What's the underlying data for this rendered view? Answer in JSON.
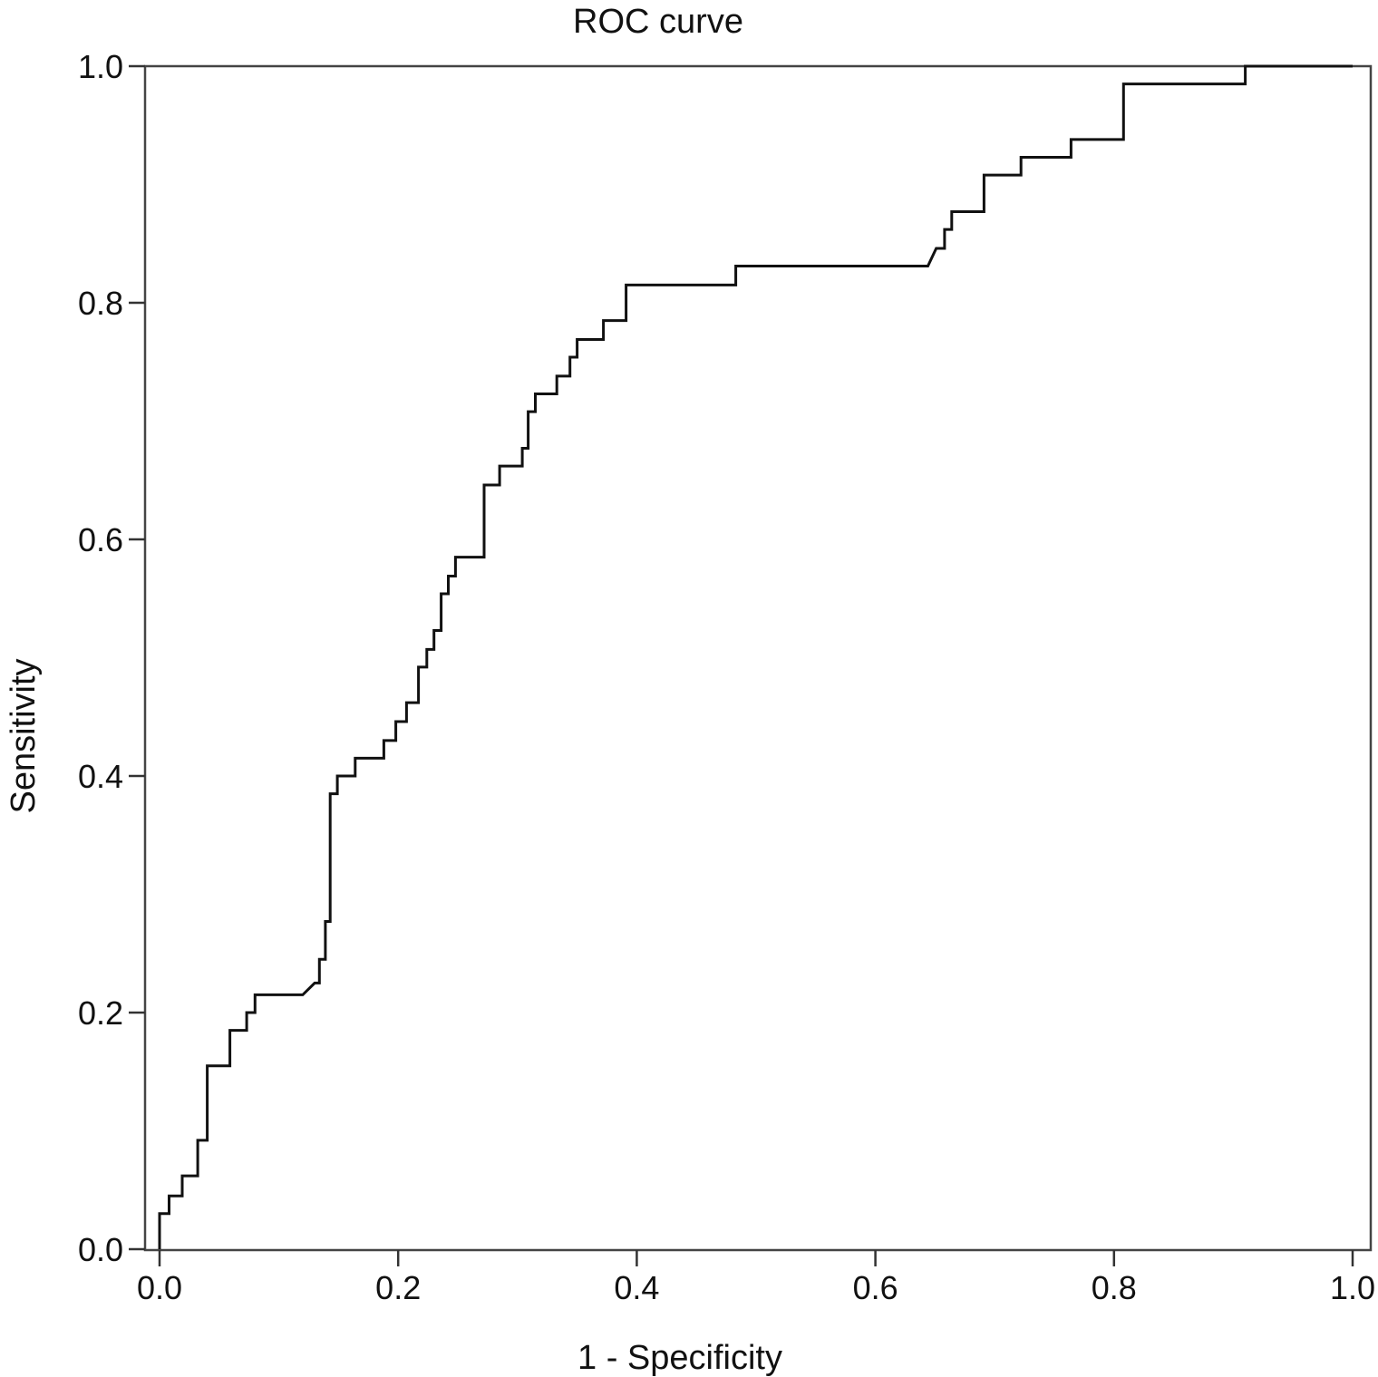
{
  "chart_data": {
    "type": "line",
    "title": "ROC curve",
    "xlabel": "1 - Specificity",
    "ylabel": "Sensitivity",
    "xlim": [
      0.0,
      1.0
    ],
    "ylim": [
      0.0,
      1.0
    ],
    "x_ticks": [
      "0.0",
      "0.2",
      "0.4",
      "0.6",
      "0.8",
      "1.0"
    ],
    "y_ticks": [
      "0.0",
      "0.2",
      "0.4",
      "0.6",
      "0.8",
      "1.0"
    ],
    "grid": false,
    "legend": "none",
    "line_color": "#111111",
    "series": [
      {
        "x": [
          0.0,
          0.0,
          0.008,
          0.008,
          0.019,
          0.019,
          0.032,
          0.032,
          0.04,
          0.04,
          0.046,
          0.046,
          0.059,
          0.059,
          0.073,
          0.073,
          0.08,
          0.08,
          0.086,
          0.086,
          0.12,
          0.13,
          0.134,
          0.134,
          0.139,
          0.139,
          0.143,
          0.143,
          0.149,
          0.149,
          0.156,
          0.156,
          0.164,
          0.164,
          0.188,
          0.188,
          0.198,
          0.198,
          0.207,
          0.207,
          0.217,
          0.217,
          0.224,
          0.224,
          0.23,
          0.23,
          0.236,
          0.236,
          0.242,
          0.242,
          0.248,
          0.248,
          0.272,
          0.272,
          0.285,
          0.285,
          0.304,
          0.304,
          0.309,
          0.309,
          0.315,
          0.315,
          0.333,
          0.333,
          0.344,
          0.344,
          0.35,
          0.35,
          0.372,
          0.372,
          0.391,
          0.391,
          0.483,
          0.483,
          0.644,
          0.651,
          0.658,
          0.658,
          0.664,
          0.664,
          0.67,
          0.67,
          0.691,
          0.691,
          0.722,
          0.722,
          0.764,
          0.764,
          0.808,
          0.808,
          0.91,
          0.91,
          1.0
        ],
        "y": [
          0.0,
          0.03,
          0.03,
          0.045,
          0.045,
          0.062,
          0.062,
          0.092,
          0.092,
          0.155,
          0.155,
          0.155,
          0.155,
          0.185,
          0.185,
          0.2,
          0.2,
          0.215,
          0.215,
          0.215,
          0.215,
          0.225,
          0.225,
          0.245,
          0.245,
          0.277,
          0.277,
          0.385,
          0.385,
          0.4,
          0.4,
          0.4,
          0.4,
          0.415,
          0.415,
          0.43,
          0.43,
          0.446,
          0.446,
          0.462,
          0.462,
          0.492,
          0.492,
          0.507,
          0.507,
          0.523,
          0.523,
          0.554,
          0.554,
          0.569,
          0.569,
          0.585,
          0.585,
          0.646,
          0.646,
          0.662,
          0.662,
          0.677,
          0.677,
          0.708,
          0.708,
          0.723,
          0.723,
          0.738,
          0.738,
          0.754,
          0.754,
          0.769,
          0.769,
          0.785,
          0.785,
          0.815,
          0.815,
          0.831,
          0.831,
          0.846,
          0.846,
          0.862,
          0.862,
          0.877,
          0.877,
          0.877,
          0.877,
          0.908,
          0.908,
          0.923,
          0.923,
          0.938,
          0.938,
          0.985,
          0.985,
          1.0,
          1.0
        ]
      }
    ]
  }
}
